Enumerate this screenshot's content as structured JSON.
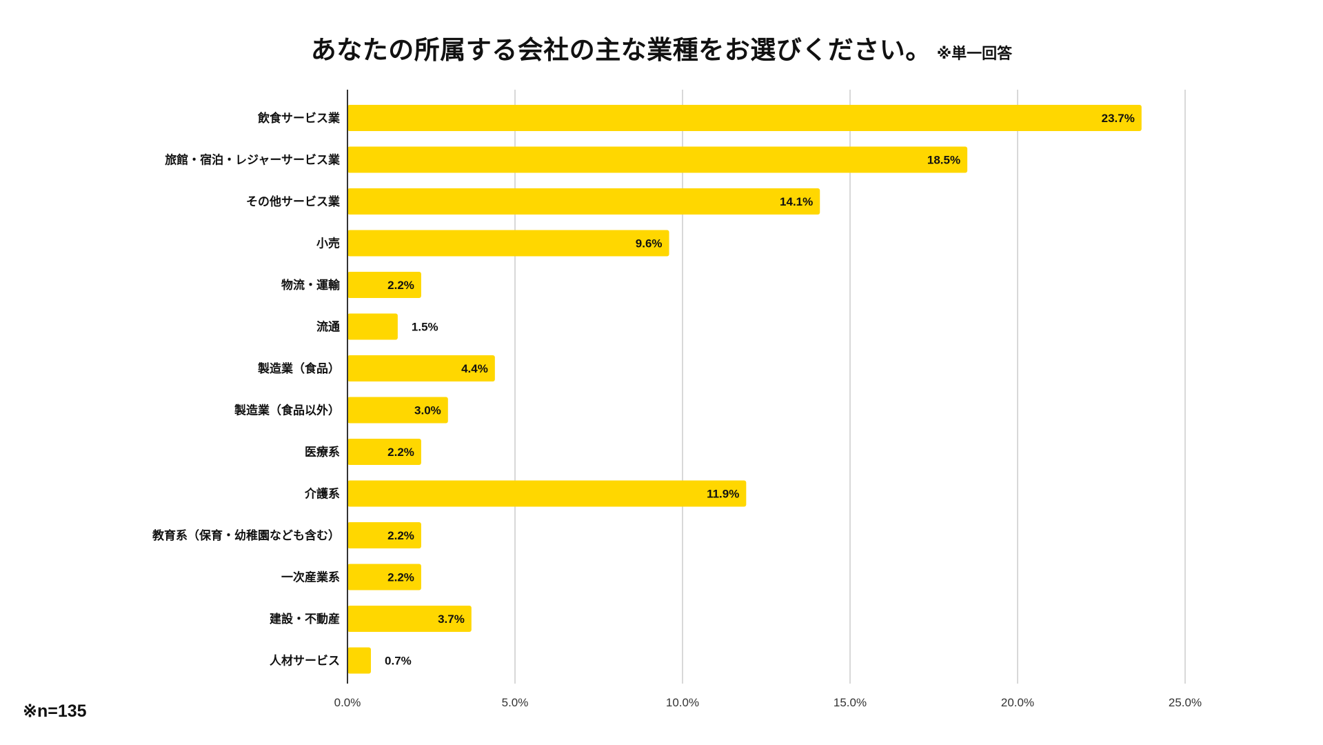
{
  "title": "あなたの所属する会社の主な業種をお選びください。",
  "subtitle": "※単一回答",
  "note": "※n=135",
  "colors": {
    "bar": "#FFD700",
    "grid": "#cccccc",
    "axis": "#333333",
    "text": "#111111"
  },
  "chart_data": {
    "type": "bar",
    "orientation": "horizontal",
    "categories": [
      "飲食サービス業",
      "旅館・宿泊・レジャーサービス業",
      "その他サービス業",
      "小売",
      "物流・運輸",
      "流通",
      "製造業（食品）",
      "製造業（食品以外）",
      "医療系",
      "介護系",
      "教育系（保育・幼稚園なども含む）",
      "一次産業系",
      "建設・不動産",
      "人材サービス"
    ],
    "values": [
      23.7,
      18.5,
      14.1,
      9.6,
      2.2,
      1.5,
      4.4,
      3.0,
      2.2,
      11.9,
      2.2,
      2.2,
      3.7,
      0.7
    ],
    "value_labels": [
      "23.7%",
      "18.5%",
      "14.1%",
      "9.6%",
      "2.2%",
      "1.5%",
      "4.4%",
      "3.0%",
      "2.2%",
      "11.9%",
      "2.2%",
      "2.2%",
      "3.7%",
      "0.7%"
    ],
    "xlim": [
      0,
      25
    ],
    "xticks": [
      0,
      5,
      10,
      15,
      20,
      25
    ],
    "xtick_labels": [
      "0.0%",
      "5.0%",
      "10.0%",
      "15.0%",
      "20.0%",
      "25.0%"
    ],
    "grid": true,
    "legend": "none"
  }
}
